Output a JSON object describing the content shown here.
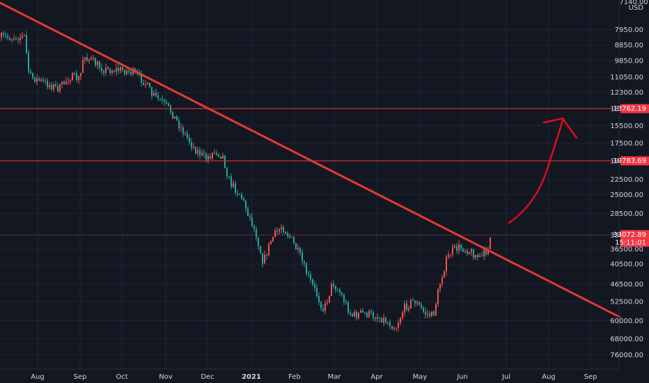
{
  "chart_data": {
    "type": "candlestick",
    "y_axis": {
      "currency": "USD",
      "scale": "inverted-log",
      "range": [
        6600,
        80000
      ],
      "top_partial_label": "7140.00",
      "ticks": [
        "7950.00",
        "8850.00",
        "9850.00",
        "11050.00",
        "12300.00",
        "13762.19",
        "15500.00",
        "17500.00",
        "19783.69",
        "22500.00",
        "25000.00",
        "28500.00",
        "33072.89",
        "36500.00",
        "40500.00",
        "46500.00",
        "52500.00",
        "60000.00",
        "68000.00",
        "76000.00"
      ]
    },
    "x_axis": {
      "ticks": [
        {
          "label": "Aug"
        },
        {
          "label": "Sep"
        },
        {
          "label": "Oct"
        },
        {
          "label": "Nov"
        },
        {
          "label": "Dec"
        },
        {
          "label": "2021",
          "year": true
        },
        {
          "label": "Feb"
        },
        {
          "label": "Mar"
        },
        {
          "label": "Apr"
        },
        {
          "label": "May"
        },
        {
          "label": "Jun"
        },
        {
          "label": "Jul"
        },
        {
          "label": "Aug"
        },
        {
          "label": "Sep"
        }
      ]
    },
    "price_path": [
      [
        0,
        8400
      ],
      [
        35,
        8350
      ],
      [
        42,
        11000
      ],
      [
        55,
        11300
      ],
      [
        85,
        12000
      ],
      [
        100,
        11000
      ],
      [
        115,
        11200
      ],
      [
        120,
        9500
      ],
      [
        130,
        9800
      ],
      [
        150,
        10500
      ],
      [
        175,
        10500
      ],
      [
        195,
        10800
      ],
      [
        210,
        11600
      ],
      [
        218,
        12500
      ],
      [
        230,
        13000
      ],
      [
        245,
        14000
      ],
      [
        262,
        16000
      ],
      [
        278,
        18000
      ],
      [
        295,
        19500
      ],
      [
        310,
        18500
      ],
      [
        320,
        19200
      ],
      [
        330,
        23000
      ],
      [
        345,
        25000
      ],
      [
        355,
        28000
      ],
      [
        368,
        33000
      ],
      [
        378,
        40000
      ],
      [
        390,
        34000
      ],
      [
        405,
        31000
      ],
      [
        418,
        34000
      ],
      [
        430,
        38000
      ],
      [
        442,
        44000
      ],
      [
        455,
        50000
      ],
      [
        465,
        56000
      ],
      [
        478,
        46000
      ],
      [
        490,
        50000
      ],
      [
        505,
        58000
      ],
      [
        520,
        57000
      ],
      [
        540,
        58000
      ],
      [
        555,
        60000
      ],
      [
        568,
        63000
      ],
      [
        580,
        55000
      ],
      [
        595,
        52000
      ],
      [
        610,
        57000
      ],
      [
        622,
        58000
      ],
      [
        632,
        46000
      ],
      [
        640,
        40000
      ],
      [
        648,
        37000
      ],
      [
        660,
        36000
      ],
      [
        675,
        37000
      ],
      [
        690,
        39000
      ],
      [
        700,
        36500
      ],
      [
        705,
        33072.89
      ]
    ],
    "horizontal_levels": [
      {
        "price": 13762.19,
        "label": "13762.19",
        "color": "#f23645"
      },
      {
        "price": 19783.69,
        "label": "19783.69",
        "color": "#f23645"
      }
    ],
    "current_price": {
      "value": 33072.89,
      "label": "33072.89",
      "countdown": "15:11:01",
      "color": "#f23645"
    },
    "trendline": {
      "color": "#e53935",
      "from": {
        "x_day": 0,
        "price": 6600
      },
      "to": {
        "x_day": 890,
        "price": 58500
      }
    },
    "annotation": {
      "type": "freehand-arrow",
      "color": "#e00b1c",
      "direction": "up"
    },
    "colors": {
      "background": "#131722",
      "grid": "#1f2433",
      "up": "#26a69a",
      "down": "#ef5350",
      "text": "#d1d4dc"
    }
  }
}
